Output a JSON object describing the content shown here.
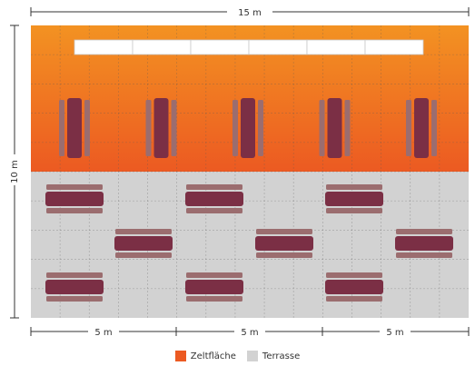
{
  "dimensions": {
    "top": "15 m",
    "left": "10 m",
    "bottom": [
      "5 m",
      "5 m",
      "5 m"
    ]
  },
  "zones": {
    "tent": {
      "label": "Zeltfläche",
      "color_top": "#f39222",
      "color_bottom": "#ec5a22"
    },
    "terrace": {
      "label": "Terrasse",
      "color": "#d2d2d2"
    }
  },
  "furniture": {
    "table_color": "#7b2f45",
    "bench_color": "#9b6d6f",
    "buffet_color": "#ffffff",
    "buffet_segments": 6,
    "tent_tables": 5,
    "terrace_tables": 9
  }
}
